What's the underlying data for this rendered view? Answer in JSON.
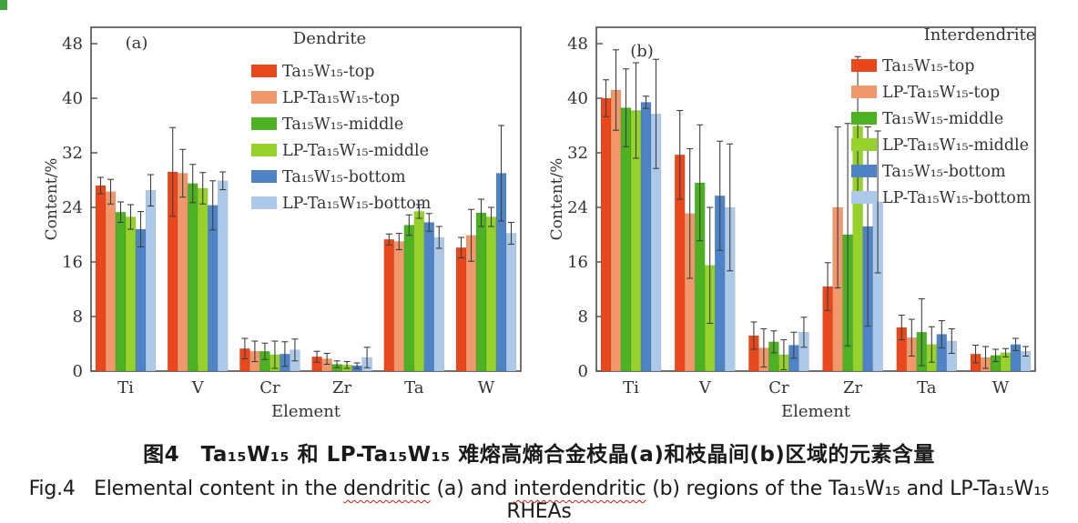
{
  "figure": {
    "captions": {
      "chinese": "图4　Ta₁₅W₁₅ 和 LP-Ta₁₅W₁₅ 难熔高熵合金枝晶(a)和枝晶间(b)区域的元素含量",
      "english_segments": [
        {
          "text": "Fig.4   Elemental content in the "
        },
        {
          "text": "dendritic",
          "wavy": true
        },
        {
          "text": " (a) and "
        },
        {
          "text": "interdendritic",
          "wavy": true
        },
        {
          "text": " (b) regions of the Ta₁₅W₁₅ and LP-Ta₁₅W₁₅ "
        },
        {
          "text": "RHEAs",
          "wavy": true
        }
      ]
    },
    "colors": {
      "frame": "#4c4c4c",
      "error_bar": "#3f3f3f",
      "text": "#333333",
      "corner_mark_green": "#3fa33f"
    }
  },
  "chart_data": [
    {
      "type": "bar",
      "panel_label": "(a)",
      "legend_title": "Dendrite",
      "legend_position": "top-center-inside",
      "title": "",
      "xlabel": "Element",
      "ylabel": "Content/%",
      "ylim": [
        0,
        50.4
      ],
      "yticks": [
        0,
        8,
        16,
        24,
        32,
        40,
        48
      ],
      "grid": false,
      "categories": [
        "Ti",
        "V",
        "Cr",
        "Zr",
        "Ta",
        "W"
      ],
      "series": [
        {
          "name": "Ta₁₅W₁₅-top",
          "color": "#e8481c",
          "values": [
            27.2,
            29.2,
            3.3,
            2.1,
            19.3,
            18.1
          ],
          "errors": [
            1.2,
            6.5,
            1.5,
            0.8,
            0.8,
            1.5
          ]
        },
        {
          "name": "LP-Ta₁₅W₁₅-top",
          "color": "#f1976c",
          "values": [
            26.3,
            29.0,
            2.9,
            1.8,
            19.0,
            19.9
          ],
          "errors": [
            1.8,
            3.5,
            1.5,
            0.8,
            1.2,
            3.8
          ]
        },
        {
          "name": "Ta₁₅W₁₅-middle",
          "color": "#4db223",
          "values": [
            23.3,
            27.5,
            2.9,
            1.0,
            21.4,
            23.2
          ],
          "errors": [
            1.5,
            2.8,
            1.2,
            0.5,
            1.5,
            2.0
          ]
        },
        {
          "name": "LP-Ta₁₅W₁₅-middle",
          "color": "#96d22b",
          "values": [
            22.6,
            26.8,
            2.4,
            0.9,
            23.4,
            22.6
          ],
          "errors": [
            1.8,
            2.3,
            2.0,
            0.5,
            1.0,
            1.4
          ]
        },
        {
          "name": "Ta₁₅W₁₅-bottom",
          "color": "#4e84c6",
          "values": [
            20.8,
            24.3,
            2.5,
            0.8,
            21.8,
            29.0
          ],
          "errors": [
            2.6,
            3.6,
            1.8,
            0.4,
            1.3,
            7.0
          ]
        },
        {
          "name": "LP-Ta₁₅W₁₅-bottom",
          "color": "#adc9e9",
          "values": [
            26.5,
            27.9,
            3.1,
            2.0,
            19.6,
            20.2
          ],
          "errors": [
            2.3,
            1.3,
            1.6,
            1.5,
            1.6,
            1.6
          ]
        }
      ]
    },
    {
      "type": "bar",
      "panel_label": "(b)",
      "legend_title": "Interdendrite",
      "legend_position": "top-right-inside",
      "title": "",
      "xlabel": "Element",
      "ylabel": "Content/%",
      "ylim": [
        0,
        50.4
      ],
      "yticks": [
        0,
        8,
        16,
        24,
        32,
        40,
        48
      ],
      "grid": false,
      "categories": [
        "Ti",
        "V",
        "Cr",
        "Zr",
        "Ta",
        "W"
      ],
      "series": [
        {
          "name": "Ta₁₅W₁₅-top",
          "color": "#e8481c",
          "values": [
            40.0,
            31.7,
            5.2,
            12.4,
            6.4,
            2.5
          ],
          "errors": [
            2.7,
            6.5,
            2.0,
            3.5,
            1.8,
            1.3
          ]
        },
        {
          "name": "LP-Ta₁₅W₁₅-top",
          "color": "#f1976c",
          "values": [
            41.2,
            23.1,
            3.4,
            24.0,
            4.9,
            2.0
          ],
          "errors": [
            5.9,
            9.5,
            2.8,
            11.8,
            2.7,
            1.6
          ]
        },
        {
          "name": "Ta₁₅W₁₅-middle",
          "color": "#4db223",
          "values": [
            38.6,
            27.6,
            4.3,
            20.0,
            5.7,
            2.3
          ],
          "errors": [
            5.7,
            8.5,
            1.6,
            16.3,
            4.9,
            0.9
          ]
        },
        {
          "name": "LP-Ta₁₅W₁₅-middle",
          "color": "#96d22b",
          "values": [
            38.2,
            15.5,
            2.4,
            35.9,
            3.9,
            2.7
          ],
          "errors": [
            7.0,
            8.5,
            2.2,
            10.2,
            2.6,
            0.6
          ]
        },
        {
          "name": "Ta₁₅W₁₅-bottom",
          "color": "#4e84c6",
          "values": [
            39.4,
            25.7,
            3.8,
            21.2,
            5.4,
            3.9
          ],
          "errors": [
            0.9,
            8.0,
            1.9,
            14.6,
            2.0,
            0.9
          ]
        },
        {
          "name": "LP-Ta₁₅W₁₅-bottom",
          "color": "#adc9e9",
          "values": [
            37.7,
            24.0,
            5.7,
            24.8,
            4.4,
            2.9
          ],
          "errors": [
            8.0,
            9.3,
            2.2,
            10.4,
            1.8,
            0.7
          ]
        }
      ]
    }
  ]
}
